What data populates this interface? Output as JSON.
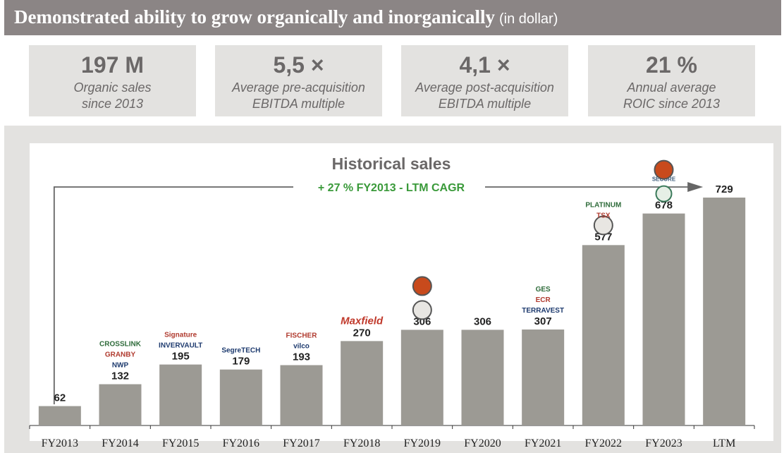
{
  "header": {
    "title": "Demonstrated ability to grow organically and inorganically",
    "subtitle": "(in dollar)"
  },
  "kpis": [
    {
      "value": "197 M",
      "label": "Organic sales\nsince 2013"
    },
    {
      "value": "5,5 ×",
      "label": "Average pre-acquisition\nEBITDA multiple"
    },
    {
      "value": "4,1 ×",
      "label": "Average post-acquisition\nEBITDA multiple"
    },
    {
      "value": "21 %",
      "label": "Annual average\nROIC since 2013"
    }
  ],
  "colors": {
    "header_bg": "#8b8585",
    "panel_bg": "#e3e2e0",
    "bar": "#9c9a94",
    "cagr_green": "#3a9a3a",
    "title_text": "#6b6868"
  },
  "chart_data": {
    "type": "bar",
    "title": "Historical sales",
    "annotation": "+ 27 % FY2013 - LTM CAGR",
    "categories": [
      "FY2013",
      "FY2014",
      "FY2015",
      "FY2016",
      "FY2017",
      "FY2018",
      "FY2019",
      "FY2020",
      "FY2021",
      "FY2022",
      "FY2023",
      "LTM"
    ],
    "values": [
      62,
      132,
      195,
      179,
      193,
      270,
      306,
      306,
      307,
      577,
      678,
      729
    ],
    "data_labels": [
      "62",
      "132",
      "195",
      "179",
      "193",
      "270",
      "306",
      "306",
      "307",
      "577",
      "678",
      "729"
    ],
    "ylim": [
      0,
      850
    ],
    "grid": false,
    "logos": [
      {
        "category": "FY2014",
        "names": [
          "NWP",
          "GRANBY",
          "CROSSLINK"
        ]
      },
      {
        "category": "FY2015",
        "names": [
          "INVERVAULT",
          "Signature"
        ]
      },
      {
        "category": "FY2016",
        "names": [
          "SegreTECH"
        ]
      },
      {
        "category": "FY2017",
        "names": [
          "vilco",
          "FISCHER"
        ]
      },
      {
        "category": "FY2018",
        "names": [
          "Maxfield"
        ]
      },
      {
        "category": "FY2019",
        "names": [
          "crest-logo",
          "seal-logo"
        ]
      },
      {
        "category": "FY2021",
        "names": [
          "TERRAVEST",
          "ECR",
          "GES"
        ]
      },
      {
        "category": "FY2022",
        "names": [
          "shield-logo",
          "TSX",
          "PLATINUM"
        ]
      },
      {
        "category": "FY2023",
        "names": [
          "SECURE",
          "hook-logo"
        ]
      }
    ]
  }
}
